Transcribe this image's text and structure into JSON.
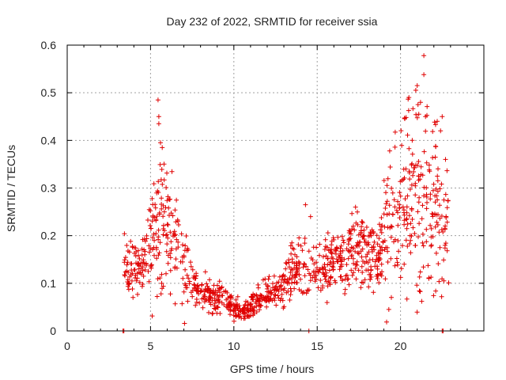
{
  "chart_data": {
    "type": "scatter",
    "title": "Day 232 of 2022, SRMTID for receiver ssia",
    "xlabel": "GPS time / hours",
    "ylabel": "SRMTID / TECUs",
    "xlim": [
      0,
      25
    ],
    "ylim": [
      0,
      0.6
    ],
    "x_ticks": [
      0,
      5,
      10,
      15,
      20
    ],
    "y_ticks": [
      0,
      0.1,
      0.2,
      0.3,
      0.4,
      0.5,
      0.6
    ],
    "x_tick_labels": [
      "0",
      "5",
      "10",
      "15",
      "20"
    ],
    "y_tick_labels": [
      "0",
      "0.1",
      "0.2",
      "0.3",
      "0.4",
      "0.5",
      "0.6"
    ],
    "grid": true,
    "marker": "plus",
    "color": "#e00000",
    "series": [
      {
        "name": "SRMTID",
        "trend": [
          [
            3.4,
            0.13
          ],
          [
            4.0,
            0.12
          ],
          [
            4.5,
            0.14
          ],
          [
            5.0,
            0.19
          ],
          [
            5.5,
            0.24
          ],
          [
            6.0,
            0.22
          ],
          [
            6.5,
            0.18
          ],
          [
            7.0,
            0.14
          ],
          [
            7.5,
            0.11
          ],
          [
            8.0,
            0.085
          ],
          [
            8.5,
            0.075
          ],
          [
            9.0,
            0.068
          ],
          [
            9.5,
            0.062
          ],
          [
            10.0,
            0.05
          ],
          [
            10.5,
            0.042
          ],
          [
            11.0,
            0.052
          ],
          [
            11.5,
            0.065
          ],
          [
            12.0,
            0.078
          ],
          [
            12.5,
            0.088
          ],
          [
            13.0,
            0.1
          ],
          [
            13.5,
            0.13
          ],
          [
            14.0,
            0.135
          ],
          [
            14.5,
            0.14
          ],
          [
            15.0,
            0.13
          ],
          [
            15.5,
            0.13
          ],
          [
            16.0,
            0.14
          ],
          [
            16.5,
            0.15
          ],
          [
            17.0,
            0.155
          ],
          [
            17.5,
            0.16
          ],
          [
            18.0,
            0.16
          ],
          [
            18.5,
            0.15
          ],
          [
            19.0,
            0.19
          ],
          [
            19.5,
            0.23
          ],
          [
            20.0,
            0.26
          ],
          [
            20.5,
            0.28
          ],
          [
            21.0,
            0.29
          ],
          [
            21.5,
            0.27
          ],
          [
            22.0,
            0.26
          ],
          [
            22.5,
            0.23
          ],
          [
            22.9,
            0.22
          ]
        ],
        "highlights": [
          [
            5.45,
            0.485
          ],
          [
            5.5,
            0.45
          ],
          [
            5.5,
            0.435
          ],
          [
            5.6,
            0.395
          ],
          [
            5.7,
            0.385
          ],
          [
            14.3,
            0.265
          ],
          [
            14.6,
            0.24
          ],
          [
            17.3,
            0.26
          ],
          [
            20.7,
            0.4
          ],
          [
            21.0,
            0.515
          ],
          [
            21.2,
            0.48
          ],
          [
            21.4,
            0.578
          ],
          [
            21.4,
            0.538
          ],
          [
            21.5,
            0.45
          ],
          [
            22.2,
            0.44
          ],
          [
            22.4,
            0.42
          ],
          [
            22.5,
            0.45
          ],
          [
            22.7,
            0.36
          ],
          [
            22.6,
            0.105
          ],
          [
            21.7,
            0.11
          ],
          [
            19.3,
            0.045
          ]
        ],
        "baseline_points": [
          [
            3.35,
            0.0
          ],
          [
            3.4,
            0.0
          ],
          [
            14.5,
            0.0
          ],
          [
            22.5,
            0.0
          ],
          [
            22.55,
            0.0
          ]
        ],
        "points_per_hour": 60
      }
    ]
  }
}
